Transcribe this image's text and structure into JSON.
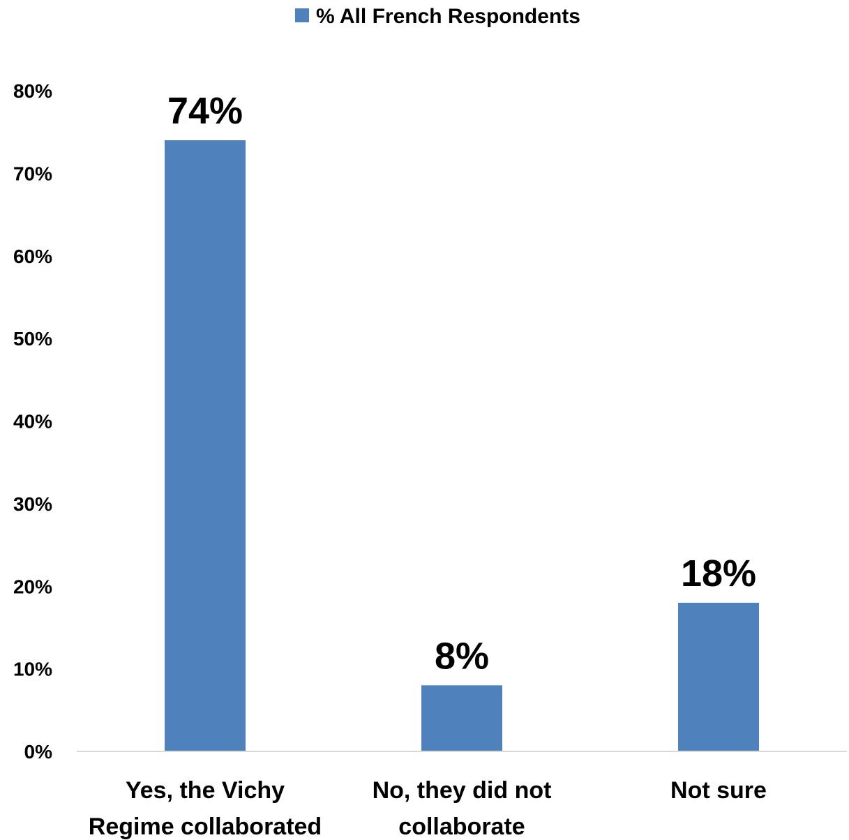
{
  "chart_data": {
    "type": "bar",
    "categories": [
      [
        "Yes, the Vichy",
        "Regime collaborated"
      ],
      [
        "No, they did not",
        "collaborate"
      ],
      [
        "Not sure"
      ]
    ],
    "series": [
      {
        "name": "% All French Respondents",
        "values": [
          74,
          8,
          18
        ],
        "data_labels": [
          "74%",
          "8%",
          "18%"
        ],
        "color": "#4f81bd"
      }
    ],
    "ylim": [
      0,
      80
    ],
    "y_ticks": [
      0,
      10,
      20,
      30,
      40,
      50,
      60,
      70,
      80
    ],
    "y_tick_labels": [
      "0%",
      "10%",
      "20%",
      "30%",
      "40%",
      "50%",
      "60%",
      "70%",
      "80%"
    ],
    "legend_position": "top-center",
    "grid": false,
    "axis_color": "#d9d9d9"
  }
}
